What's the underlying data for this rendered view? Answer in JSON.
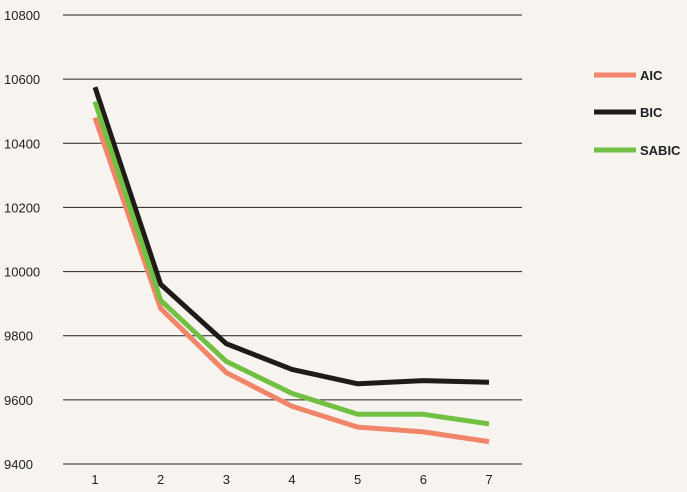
{
  "chart_data": {
    "type": "line",
    "title": "",
    "xlabel": "",
    "ylabel": "",
    "x": [
      1,
      2,
      3,
      4,
      5,
      6,
      7
    ],
    "x_tick_labels": [
      "1",
      "2",
      "3",
      "4",
      "5",
      "6",
      "7"
    ],
    "ylim": [
      9400,
      10800
    ],
    "y_ticks": [
      9400,
      9600,
      9800,
      10000,
      10200,
      10400,
      10600,
      10800
    ],
    "y_tick_labels": [
      "9400",
      "9600",
      "9800",
      "10000",
      "10200",
      "10400",
      "10600",
      "10800"
    ],
    "grid": "horizontal",
    "legend_position": "right",
    "series": [
      {
        "name": "AIC",
        "color": "#f0856a",
        "values": [
          10480,
          9885,
          9685,
          9580,
          9515,
          9500,
          9470
        ]
      },
      {
        "name": "BIC",
        "color": "#1e1b18",
        "values": [
          10575,
          9960,
          9775,
          9695,
          9650,
          9660,
          9655
        ]
      },
      {
        "name": "SABIC",
        "color": "#72c043",
        "values": [
          10530,
          9910,
          9720,
          9620,
          9555,
          9555,
          9525
        ]
      }
    ]
  }
}
